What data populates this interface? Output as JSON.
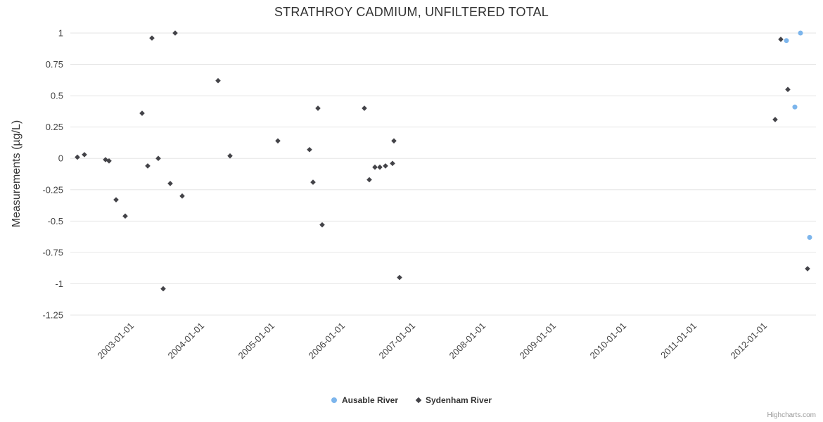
{
  "chart_data": {
    "type": "scatter",
    "title": "STRATHROY CADMIUM, UNFILTERED TOTAL",
    "ylabel": "Measurements (µg/L)",
    "ylim": [
      -1.25,
      1
    ],
    "xlim": [
      2002.15,
      2012.75
    ],
    "grid": "horizontal-only",
    "legend_position": "bottom-center",
    "y_ticks": [
      {
        "value": 1,
        "label": "1"
      },
      {
        "value": 0.75,
        "label": "0.75"
      },
      {
        "value": 0.5,
        "label": "0.5"
      },
      {
        "value": 0.25,
        "label": "0.25"
      },
      {
        "value": 0,
        "label": "0"
      },
      {
        "value": -0.25,
        "label": "-0.25"
      },
      {
        "value": -0.5,
        "label": "-0.5"
      },
      {
        "value": -0.75,
        "label": "-0.75"
      },
      {
        "value": -1,
        "label": "-1"
      },
      {
        "value": -1.25,
        "label": "-1.25"
      }
    ],
    "x_ticks": [
      {
        "year": 2003,
        "label": "2003-01-01"
      },
      {
        "year": 2004,
        "label": "2004-01-01"
      },
      {
        "year": 2005,
        "label": "2005-01-01"
      },
      {
        "year": 2006,
        "label": "2006-01-01"
      },
      {
        "year": 2007,
        "label": "2007-01-01"
      },
      {
        "year": 2008,
        "label": "2008-01-01"
      },
      {
        "year": 2009,
        "label": "2009-01-01"
      },
      {
        "year": 2010,
        "label": "2010-01-01"
      },
      {
        "year": 2011,
        "label": "2011-01-01"
      },
      {
        "year": 2012,
        "label": "2012-01-01"
      }
    ],
    "series": [
      {
        "name": "Ausable River",
        "color": "#7cb5ec",
        "marker": "circle",
        "points": [
          [
            2012.33,
            0.94
          ],
          [
            2012.45,
            0.41
          ],
          [
            2012.53,
            1.0
          ],
          [
            2012.66,
            -0.63
          ]
        ]
      },
      {
        "name": "Sydenham River",
        "color": "#434348",
        "marker": "diamond",
        "points": [
          [
            2002.25,
            0.01
          ],
          [
            2002.35,
            0.03
          ],
          [
            2002.65,
            -0.01
          ],
          [
            2002.7,
            -0.02
          ],
          [
            2002.8,
            -0.33
          ],
          [
            2002.93,
            -0.46
          ],
          [
            2003.17,
            0.36
          ],
          [
            2003.25,
            -0.06
          ],
          [
            2003.31,
            0.96
          ],
          [
            2003.4,
            0.0
          ],
          [
            2003.47,
            -1.04
          ],
          [
            2003.57,
            -0.2
          ],
          [
            2003.64,
            1.0
          ],
          [
            2003.74,
            -0.3
          ],
          [
            2004.25,
            0.62
          ],
          [
            2004.42,
            0.02
          ],
          [
            2005.1,
            0.14
          ],
          [
            2005.55,
            0.07
          ],
          [
            2005.6,
            -0.19
          ],
          [
            2005.67,
            0.4
          ],
          [
            2005.73,
            -0.53
          ],
          [
            2006.33,
            0.4
          ],
          [
            2006.4,
            -0.17
          ],
          [
            2006.48,
            -0.07
          ],
          [
            2006.55,
            -0.07
          ],
          [
            2006.63,
            -0.06
          ],
          [
            2006.73,
            -0.04
          ],
          [
            2006.75,
            0.14
          ],
          [
            2006.83,
            -0.95
          ],
          [
            2012.17,
            0.31
          ],
          [
            2012.25,
            0.95
          ],
          [
            2012.35,
            0.55
          ],
          [
            2012.63,
            -0.88
          ]
        ]
      }
    ],
    "credits": "Highcharts.com"
  }
}
